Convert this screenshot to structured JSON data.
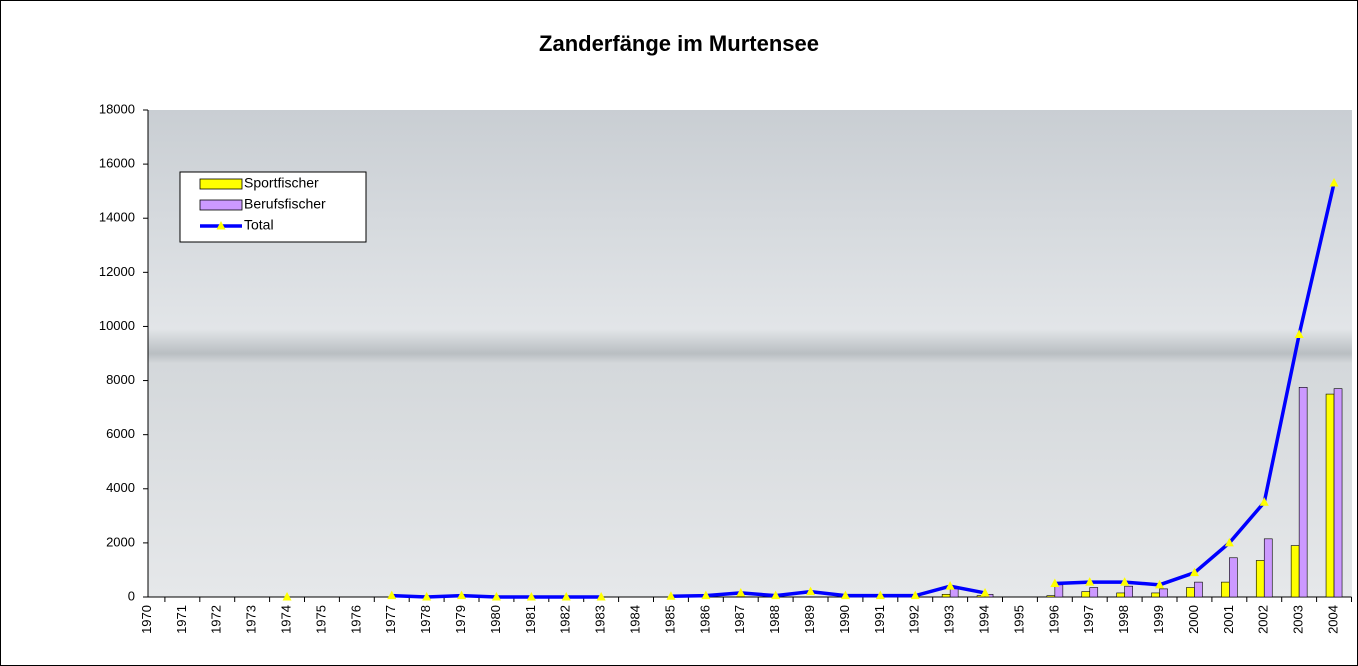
{
  "chart_data": {
    "type": "bar",
    "title": "Zanderfänge im Murtensee",
    "categories": [
      "1970",
      "1971",
      "1972",
      "1973",
      "1974",
      "1975",
      "1976",
      "1977",
      "1978",
      "1979",
      "1980",
      "1981",
      "1982",
      "1983",
      "1984",
      "1985",
      "1986",
      "1987",
      "1988",
      "1989",
      "1990",
      "1991",
      "1992",
      "1993",
      "1994",
      "1995",
      "1996",
      "1997",
      "1998",
      "1999",
      "2000",
      "2001",
      "2002",
      "2003",
      "2004"
    ],
    "series": [
      {
        "name": "Sportfischer",
        "color": "#ffff00",
        "type": "bar",
        "values": [
          null,
          null,
          null,
          null,
          null,
          null,
          null,
          null,
          null,
          null,
          null,
          null,
          null,
          null,
          null,
          null,
          null,
          null,
          null,
          null,
          null,
          null,
          null,
          100,
          50,
          null,
          50,
          200,
          150,
          150,
          350,
          550,
          1350,
          1900,
          7500
        ]
      },
      {
        "name": "Berufsfischer",
        "color": "#cc99ff",
        "type": "bar",
        "values": [
          null,
          null,
          null,
          null,
          null,
          null,
          null,
          null,
          null,
          null,
          null,
          null,
          null,
          null,
          null,
          null,
          null,
          null,
          null,
          null,
          null,
          null,
          null,
          300,
          100,
          null,
          450,
          350,
          400,
          300,
          550,
          1450,
          2150,
          7750,
          7700
        ]
      },
      {
        "name": "Total",
        "color": "#0000ff",
        "type": "line",
        "values": [
          null,
          null,
          null,
          null,
          0,
          null,
          null,
          50,
          0,
          50,
          0,
          0,
          0,
          0,
          null,
          30,
          50,
          150,
          50,
          200,
          50,
          50,
          50,
          400,
          150,
          null,
          500,
          550,
          550,
          450,
          900,
          2000,
          3500,
          9700,
          15300
        ]
      }
    ],
    "ylim": [
      0,
      18000
    ],
    "yticks": [
      0,
      2000,
      4000,
      6000,
      8000,
      10000,
      12000,
      14000,
      16000,
      18000
    ],
    "legend": "upper left"
  }
}
